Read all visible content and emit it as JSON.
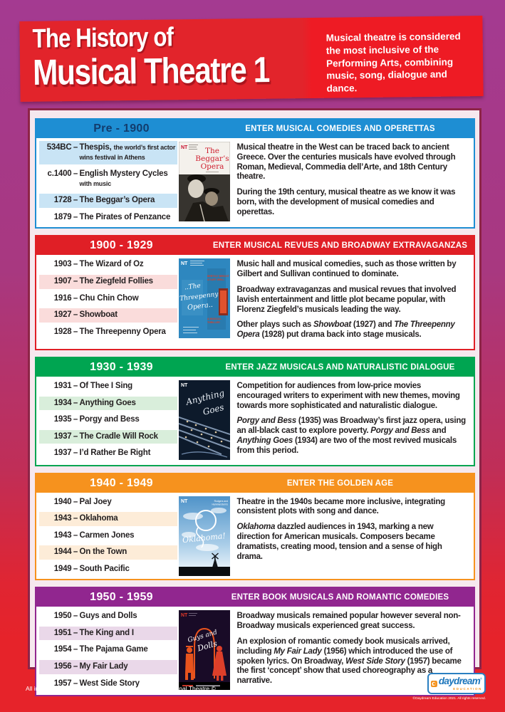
{
  "ui": {
    "dash": "–"
  },
  "banner": {
    "title_line1": "The History of",
    "title_line2": "Musical Theatre 1",
    "description": "Musical theatre is considered the most inclusive of the Performing Arts, combining music, song, dialogue and dance."
  },
  "sections": [
    {
      "date_range": "Pre - 1900",
      "headline": "ENTER MUSICAL COMEDIES AND OPERETTAS",
      "color": "#1e8ed3",
      "tint": "#c9e4f5",
      "date_color": "#123c6d",
      "timeline": [
        {
          "year": "534BC",
          "title": "Thespis,",
          "note": "the world’s first actor wins festival in Athens"
        },
        {
          "year": "c.1400",
          "title": "English Mystery Cycles",
          "note": "with music"
        },
        {
          "year": "1728",
          "title": "The Beggar’s Opera"
        },
        {
          "year": "1879",
          "title": "The Pirates of Penzance"
        }
      ],
      "poster": {
        "nt": "NT",
        "title_lines": [
          "The",
          "Beggar’s",
          "Opera"
        ]
      },
      "paragraphs": [
        [
          {
            "t": "Musical theatre in the West can be traced back to ancient Greece. Over the centuries musicals have evolved through Roman, Medieval, Commedia dell’Arte, and 18th Century theatre."
          }
        ],
        [
          {
            "t": "During the 19th century, musical theatre as we know it was born, with the development of musical comedies and operettas."
          }
        ]
      ]
    },
    {
      "date_range": "1900 - 1929",
      "headline": "ENTER MUSICAL REVUES AND BROADWAY EXTRAVAGANZAS",
      "color": "#e01f26",
      "tint": "#fadcdb",
      "date_color": "#ffffff",
      "timeline": [
        {
          "year": "1903",
          "title": "The Wizard of Oz"
        },
        {
          "year": "1907",
          "title": "The Ziegfeld Follies"
        },
        {
          "year": "1916",
          "title": "Chu Chin Chow"
        },
        {
          "year": "1927",
          "title": "Showboat"
        },
        {
          "year": "1928",
          "title": "The Threepenny Opera"
        }
      ],
      "poster": {
        "nt": "NT",
        "title_lines": [
          "..The",
          "Threepenny",
          "Opera.."
        ],
        "credit_lines": [
          "BERTOLT BRECHT",
          "& KURT WEILL"
        ],
        "tagline_lines": [
          "A MUSICAL",
          "THRILLER"
        ]
      },
      "paragraphs": [
        [
          {
            "t": "Music hall and musical comedies, such as those written by Gilbert and Sullivan continued to dominate."
          }
        ],
        [
          {
            "t": "Broadway extravaganzas and musical revues that involved lavish entertainment and little plot became popular, with Florenz Ziegfeld’s musicals leading the way."
          }
        ],
        [
          {
            "t": "Other plays such as "
          },
          {
            "t": "Showboat",
            "em": true
          },
          {
            "t": " (1927) and "
          },
          {
            "t": "The Threepenny Opera",
            "em": true
          },
          {
            "t": " (1928) put drama back into stage musicals."
          }
        ]
      ]
    },
    {
      "date_range": "1930 - 1939",
      "headline": "ENTER JAZZ MUSICALS AND NATURALISTIC DIALOGUE",
      "color": "#00a551",
      "tint": "#d9eedb",
      "date_color": "#ffffff",
      "timeline": [
        {
          "year": "1931",
          "title": "Of Thee I Sing"
        },
        {
          "year": "1934",
          "title": "Anything Goes"
        },
        {
          "year": "1935",
          "title": "Porgy and Bess"
        },
        {
          "year": "1937",
          "title": "The Cradle Will Rock"
        },
        {
          "year": "1937",
          "title": "I’d Rather Be Right"
        }
      ],
      "poster": {
        "nt": "NT",
        "title_lines": [
          "Anything",
          "Goes"
        ]
      },
      "paragraphs": [
        [
          {
            "t": "Competition for audiences from low-price movies encouraged writers to experiment with new themes, moving towards more sophisticated and naturalistic dialogue."
          }
        ],
        [
          {
            "t": "Porgy and Bess",
            "em": true
          },
          {
            "t": " (1935) was Broadway’s first jazz opera, using an all-black cast to explore poverty. "
          },
          {
            "t": "Porgy and Bess",
            "em": true
          },
          {
            "t": " and "
          },
          {
            "t": "Anything Goes",
            "em": true
          },
          {
            "t": " (1934) are two of the most revived musicals from this period."
          }
        ]
      ]
    },
    {
      "date_range": "1940 - 1949",
      "headline": "ENTER THE GOLDEN AGE",
      "color": "#f6921e",
      "tint": "#fdecd8",
      "date_color": "#ffffff",
      "timeline": [
        {
          "year": "1940",
          "title": "Pal Joey"
        },
        {
          "year": "1943",
          "title": "Oklahoma"
        },
        {
          "year": "1943",
          "title": "Carmen Jones"
        },
        {
          "year": "1944",
          "title": "On the Town"
        },
        {
          "year": "1949",
          "title": "South Pacific"
        }
      ],
      "poster": {
        "nt": "NT",
        "byline_lines": [
          "Rodgers and",
          "Hammerstein’s"
        ],
        "title_lines": [
          "Oklahoma!"
        ]
      },
      "paragraphs": [
        [
          {
            "t": "Theatre in the 1940s became more inclusive, integrating consistent plots with song and dance."
          }
        ],
        [
          {
            "t": "Oklahoma",
            "em": true
          },
          {
            "t": " dazzled audiences in 1943, marking a new direction for American musicals. Composers became dramatists, creating mood, tension and a sense of high drama."
          }
        ]
      ]
    },
    {
      "date_range": "1950 - 1959",
      "headline": "ENTER BOOK MUSICALS AND ROMANTIC COMEDIES",
      "color": "#91268f",
      "tint": "#ead8e9",
      "date_color": "#ffffff",
      "timeline": [
        {
          "year": "1950",
          "title": "Guys and Dolls"
        },
        {
          "year": "1951",
          "title": "The King and I"
        },
        {
          "year": "1954",
          "title": "The Pajama Game"
        },
        {
          "year": "1956",
          "title": "My Fair Lady"
        },
        {
          "year": "1957",
          "title": "West Side Story"
        }
      ],
      "poster": {
        "nt": "NT",
        "title_lines": [
          "Guys and",
          "Dolls"
        ]
      },
      "paragraphs": [
        [
          {
            "t": "Broadway musicals remained popular however several non-Broadway musicals experienced great success."
          }
        ],
        [
          {
            "t": "An explosion of romantic comedy book musicals arrived, including "
          },
          {
            "t": "My Fair Lady",
            "em": true
          },
          {
            "t": " (1956) which introduced the use of spoken lyrics. On Broadway, "
          },
          {
            "t": "West Side Story",
            "em": true
          },
          {
            "t": " (1957) became the first ‘concept’ show that used choreography as a narrative."
          }
        ]
      ]
    }
  ],
  "footer": {
    "credit": "All images on this chart have been provided by The National Theatre ©",
    "logo": {
      "brand": "daydream",
      "reg": "®",
      "sub": "EDUCATION",
      "note": "©Daydream Education 2021. All rights reserved."
    }
  }
}
